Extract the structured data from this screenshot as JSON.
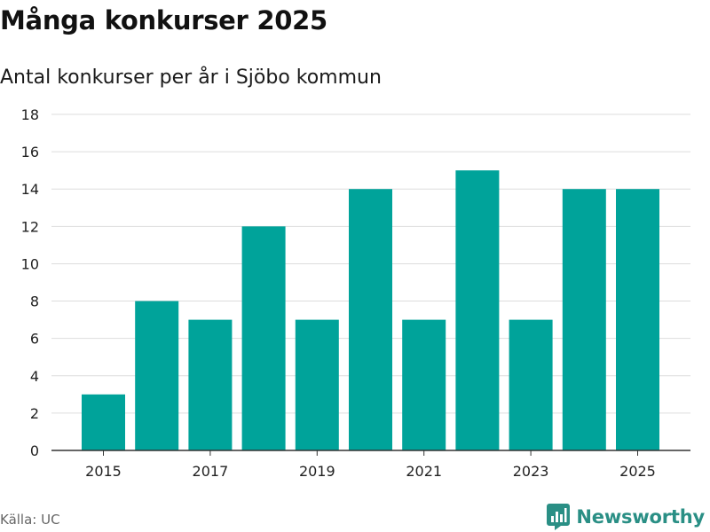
{
  "header": {
    "title": "Många konkurser 2025",
    "subtitle": "Antal konkurser per år i Sjöbo kommun"
  },
  "footer": {
    "source": "Källa: UC",
    "brand": "Newsworthy"
  },
  "colors": {
    "bar": "#00a39a",
    "grid": "#dddddd",
    "axis": "#333333",
    "brand": "#2a8f85"
  },
  "chart_data": {
    "type": "bar",
    "categories": [
      2015,
      2016,
      2017,
      2018,
      2019,
      2020,
      2021,
      2022,
      2023,
      2024,
      2025
    ],
    "values": [
      3,
      8,
      7,
      12,
      7,
      14,
      7,
      15,
      7,
      14,
      14
    ],
    "x_tick_labels": [
      "2015",
      "2017",
      "2019",
      "2021",
      "2023",
      "2025"
    ],
    "y_ticks": [
      0,
      2,
      4,
      6,
      8,
      10,
      12,
      14,
      16,
      18
    ],
    "ylim": [
      0,
      18
    ],
    "grid": true,
    "legend": "none"
  }
}
